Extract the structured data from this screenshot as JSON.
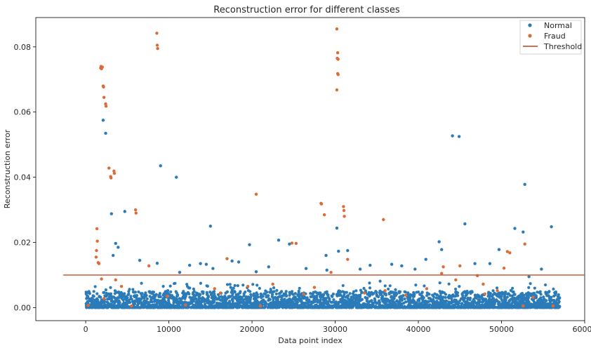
{
  "chart_data": {
    "type": "scatter",
    "title": "Reconstruction error for different classes",
    "xlabel": "Data point index",
    "ylabel": "Reconstruction error",
    "xlim": [
      -6000,
      60000
    ],
    "ylim": [
      -0.004,
      0.089
    ],
    "xticks": [
      0,
      10000,
      20000,
      30000,
      40000,
      50000,
      60000
    ],
    "xtick_labels": [
      "0",
      "10000",
      "20000",
      "30000",
      "40000",
      "50000",
      "60000"
    ],
    "yticks": [
      0,
      0.02,
      0.04,
      0.06,
      0.08
    ],
    "ytick_labels": [
      "0.00",
      "0.02",
      "0.04",
      "0.06",
      "0.08"
    ],
    "grid": false,
    "legend_position": "top-right",
    "colors": {
      "normal": "#2b7bb9",
      "fraud": "#dd6b38",
      "threshold": "#c85a3a"
    },
    "threshold": {
      "name": "Threshold",
      "value": 0.01,
      "x_range": [
        -2700,
        60000
      ]
    },
    "series": [
      {
        "name": "Normal",
        "x_range": [
          0,
          57000
        ],
        "base_band": [
          0.0,
          0.005
        ],
        "points": [
          [
            2100,
            0.0575
          ],
          [
            2400,
            0.0535
          ],
          [
            3100,
            0.0288
          ],
          [
            3300,
            0.016
          ],
          [
            3600,
            0.0197
          ],
          [
            3900,
            0.0185
          ],
          [
            4700,
            0.0295
          ],
          [
            9000,
            0.0435
          ],
          [
            10900,
            0.04
          ],
          [
            15000,
            0.025
          ],
          [
            14500,
            0.0133
          ],
          [
            13800,
            0.0135
          ],
          [
            15300,
            0.012
          ],
          [
            17600,
            0.0143
          ],
          [
            18400,
            0.014
          ],
          [
            19700,
            0.0193
          ],
          [
            22000,
            0.0125
          ],
          [
            23200,
            0.0207
          ],
          [
            24500,
            0.0195
          ],
          [
            28900,
            0.016
          ],
          [
            30200,
            0.0244
          ],
          [
            30400,
            0.0173
          ],
          [
            31500,
            0.0175
          ],
          [
            34200,
            0.013
          ],
          [
            36800,
            0.0133
          ],
          [
            39600,
            0.0118
          ],
          [
            40900,
            0.0148
          ],
          [
            42500,
            0.0202
          ],
          [
            42800,
            0.0178
          ],
          [
            44100,
            0.0527
          ],
          [
            44900,
            0.0525
          ],
          [
            45600,
            0.0257
          ],
          [
            48600,
            0.0135
          ],
          [
            49700,
            0.0178
          ],
          [
            51600,
            0.0243
          ],
          [
            52600,
            0.0232
          ],
          [
            52800,
            0.0378
          ],
          [
            56000,
            0.0248
          ],
          [
            8600,
            0.0136
          ],
          [
            6500,
            0.0145
          ],
          [
            12500,
            0.013
          ],
          [
            26500,
            0.012
          ],
          [
            33000,
            0.0118
          ],
          [
            38000,
            0.0128
          ],
          [
            46800,
            0.0135
          ],
          [
            54800,
            0.0118
          ],
          [
            29000,
            0.0115
          ],
          [
            20500,
            0.011
          ],
          [
            11300,
            0.0108
          ],
          [
            53300,
            0.0095
          ]
        ]
      },
      {
        "name": "Fraud",
        "points": [
          [
            1350,
            0.0242
          ],
          [
            1400,
            0.0204
          ],
          [
            1300,
            0.0175
          ],
          [
            1250,
            0.0155
          ],
          [
            1500,
            0.0138
          ],
          [
            1600,
            0.0135
          ],
          [
            1800,
            0.0735
          ],
          [
            1850,
            0.074
          ],
          [
            1900,
            0.0733
          ],
          [
            2000,
            0.0738
          ],
          [
            2100,
            0.068
          ],
          [
            2150,
            0.0677
          ],
          [
            2200,
            0.0645
          ],
          [
            2400,
            0.0625
          ],
          [
            2450,
            0.0618
          ],
          [
            2800,
            0.0428
          ],
          [
            3000,
            0.0402
          ],
          [
            3050,
            0.0398
          ],
          [
            3400,
            0.0419
          ],
          [
            3450,
            0.0412
          ],
          [
            6000,
            0.03
          ],
          [
            6050,
            0.029
          ],
          [
            8550,
            0.0842
          ],
          [
            8600,
            0.0805
          ],
          [
            8650,
            0.0795
          ],
          [
            20500,
            0.0348
          ],
          [
            28300,
            0.032
          ],
          [
            28350,
            0.0318
          ],
          [
            28700,
            0.0285
          ],
          [
            30200,
            0.0855
          ],
          [
            30300,
            0.0782
          ],
          [
            30250,
            0.0765
          ],
          [
            30350,
            0.0762
          ],
          [
            30300,
            0.0718
          ],
          [
            30350,
            0.0715
          ],
          [
            30200,
            0.0668
          ],
          [
            31000,
            0.031
          ],
          [
            31050,
            0.0298
          ],
          [
            31100,
            0.028
          ],
          [
            35800,
            0.027
          ],
          [
            24800,
            0.0198
          ],
          [
            25300,
            0.0197
          ],
          [
            52800,
            0.0195
          ],
          [
            50700,
            0.0172
          ],
          [
            51000,
            0.0168
          ],
          [
            31500,
            0.0148
          ],
          [
            17000,
            0.015
          ],
          [
            29500,
            0.0108
          ],
          [
            43000,
            0.0125
          ],
          [
            45000,
            0.0128
          ],
          [
            47100,
            0.0098
          ],
          [
            49500,
            0.0052
          ],
          [
            50300,
            0.0121
          ],
          [
            3600,
            0.0085
          ],
          [
            4300,
            0.0065
          ],
          [
            1900,
            0.0088
          ],
          [
            2200,
            0.0028
          ],
          [
            5500,
            0.0005
          ],
          [
            12000,
            0.0008
          ],
          [
            15500,
            0.0058
          ],
          [
            16200,
            0.0045
          ],
          [
            19500,
            0.0065
          ],
          [
            22500,
            0.0072
          ],
          [
            27500,
            0.0062
          ],
          [
            33500,
            0.0045
          ],
          [
            38500,
            0.0038
          ],
          [
            41000,
            0.0058
          ],
          [
            44500,
            0.0085
          ],
          [
            48000,
            0.0042
          ],
          [
            52600,
            0.0005
          ],
          [
            56200,
            0.0005
          ],
          [
            300,
            0.0007
          ],
          [
            7600,
            0.0128
          ],
          [
            21000,
            0.0005
          ],
          [
            36000,
            0.0052
          ],
          [
            42800,
            0.0105
          ],
          [
            47800,
            0.0072
          ],
          [
            53800,
            0.0032
          ],
          [
            26200,
            0.0042
          ],
          [
            9800,
            0.0035
          ]
        ]
      }
    ]
  }
}
